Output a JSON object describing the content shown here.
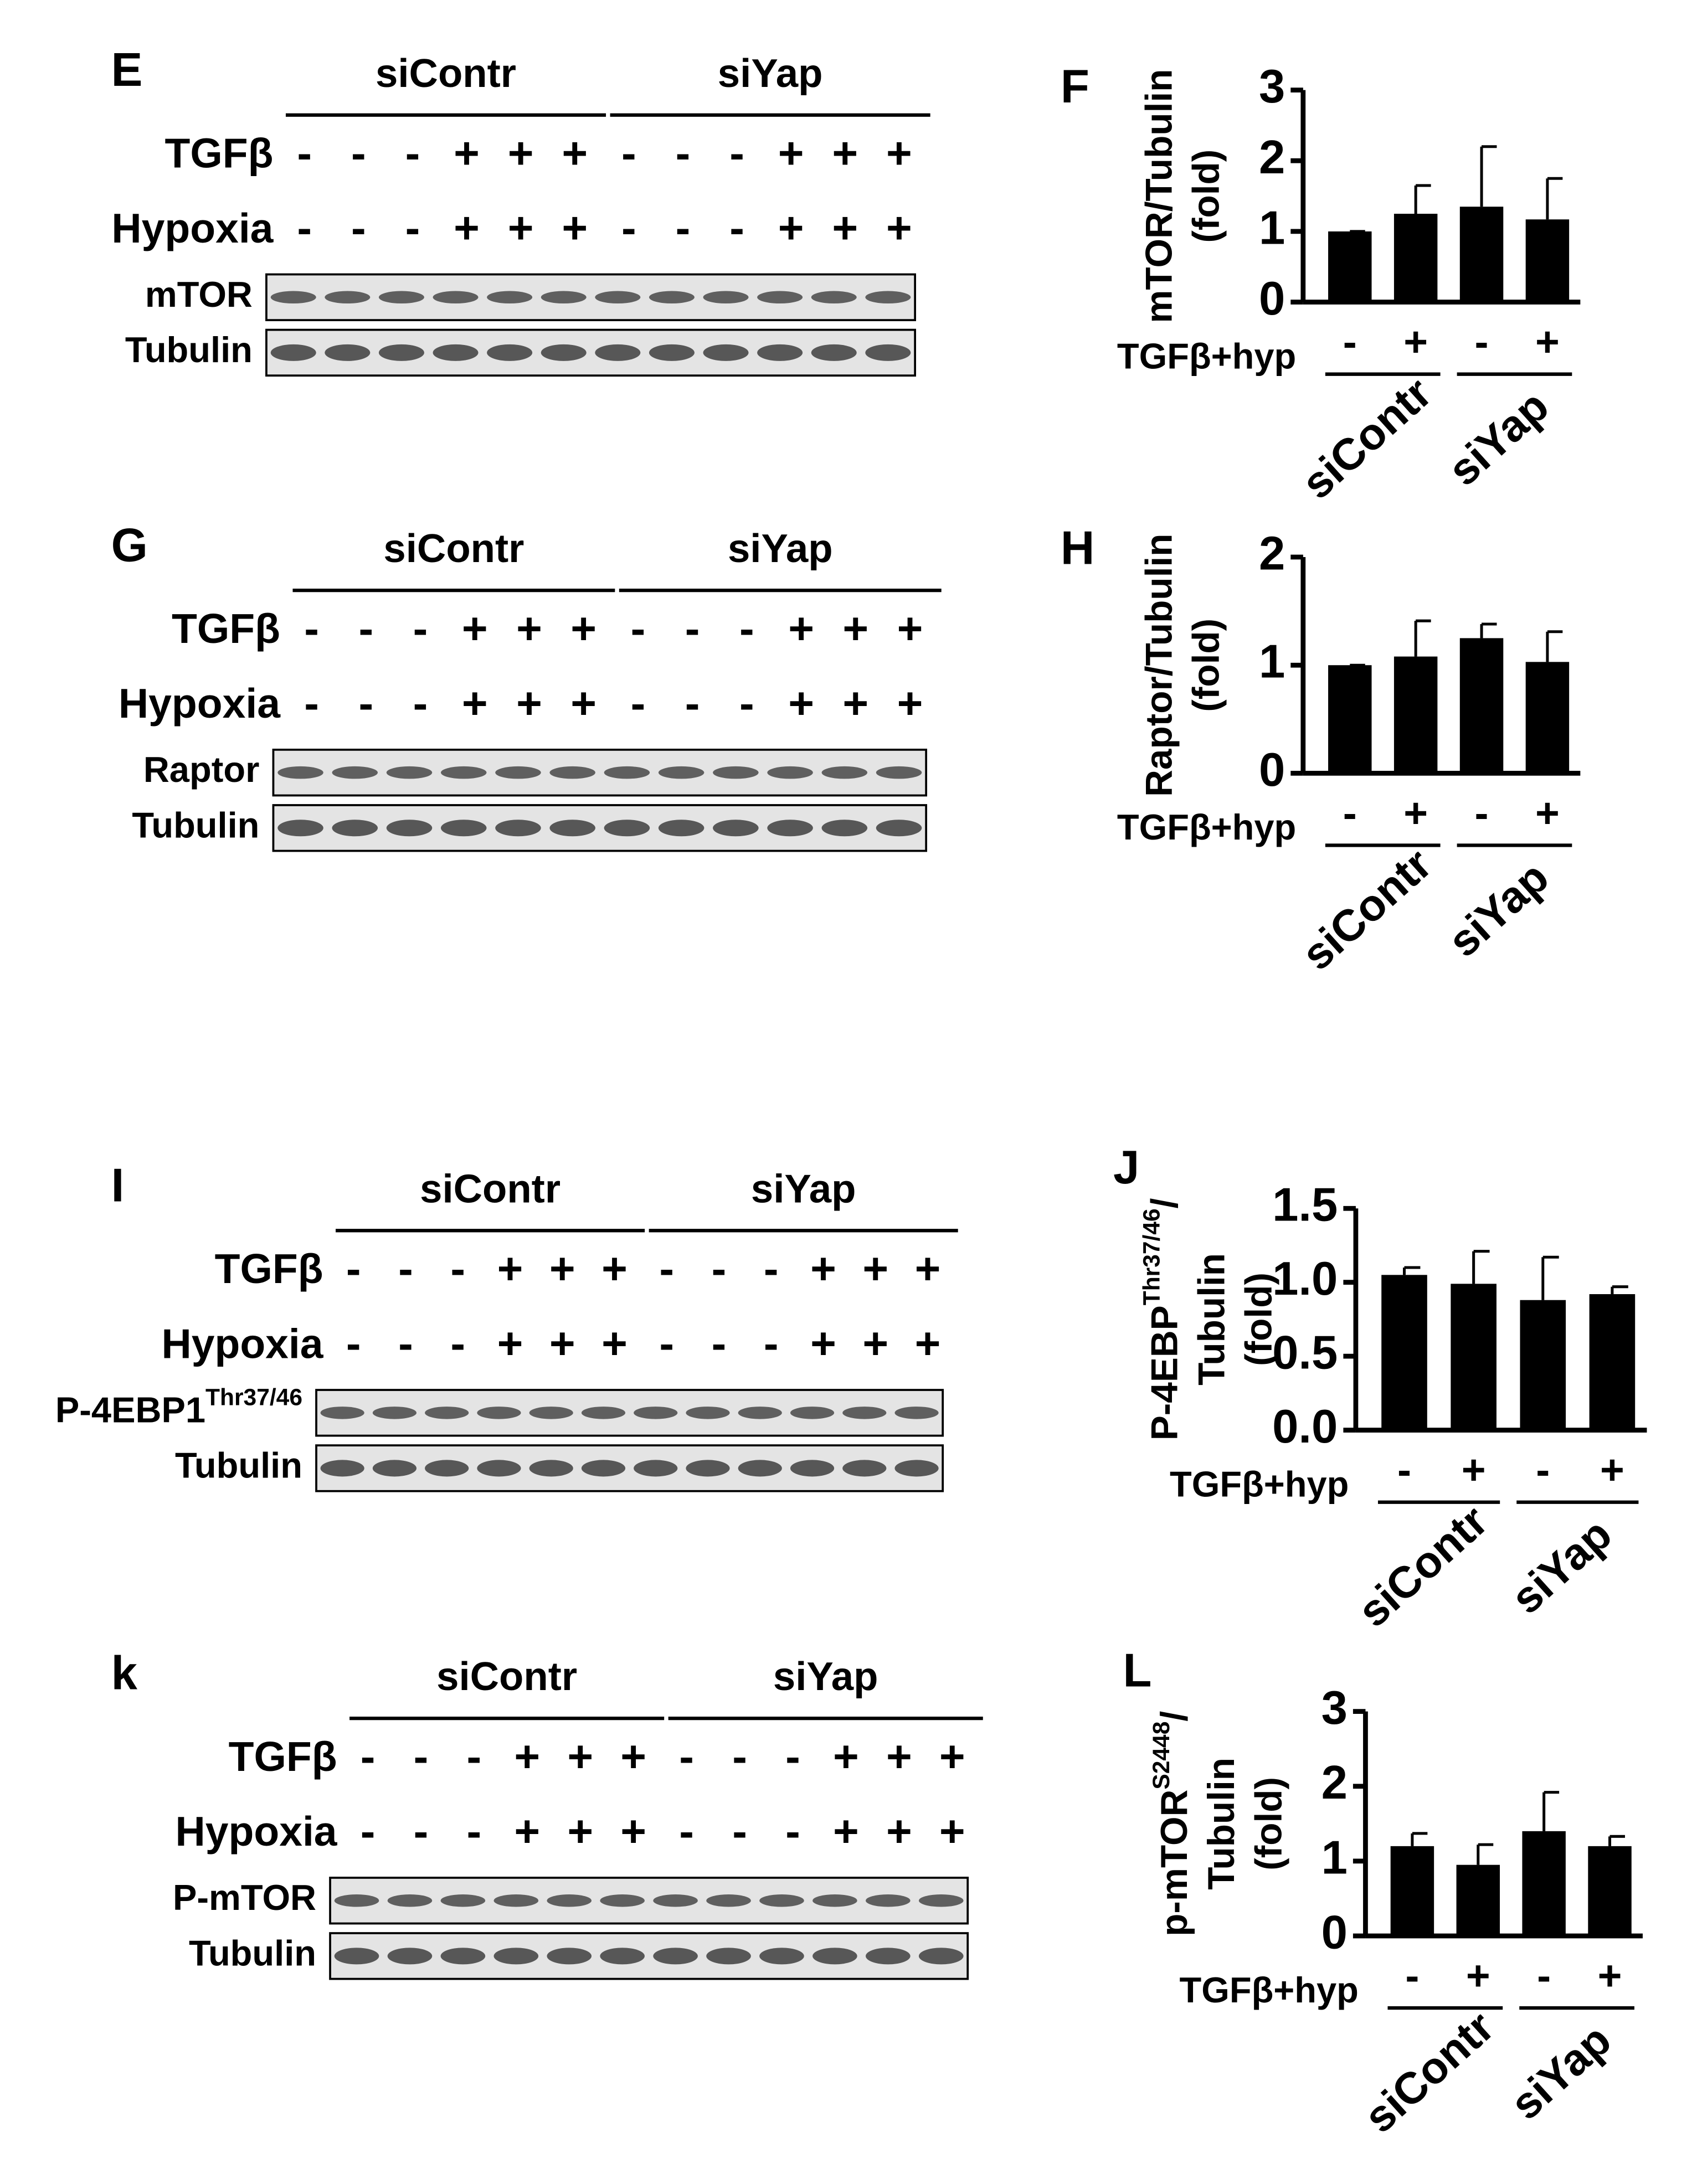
{
  "chart_data": [
    {
      "type": "bar",
      "panel": "F",
      "y_label": [
        {
          "text": "mTOR/Tubulin"
        },
        {
          "text": "(fold)"
        }
      ],
      "x_label": "TGFβ+hyp",
      "categories": [
        "-",
        "+",
        "-",
        "+"
      ],
      "groups": [
        "siContr",
        "siYap"
      ],
      "values": [
        1.0,
        1.25,
        1.35,
        1.17
      ],
      "errors": [
        0,
        0.4,
        0.85,
        0.58
      ],
      "color": "#000000",
      "ylim": [
        0,
        3
      ],
      "yticks": [
        0,
        1,
        2,
        3
      ]
    },
    {
      "type": "bar",
      "panel": "H",
      "y_label": [
        {
          "text": "Raptor/Tubulin"
        },
        {
          "text": "(fold)"
        }
      ],
      "x_label": "TGFβ+hyp",
      "categories": [
        "-",
        "+",
        "-",
        "+"
      ],
      "groups": [
        "siContr",
        "siYap"
      ],
      "values": [
        1.0,
        1.08,
        1.25,
        1.03
      ],
      "errors": [
        0,
        0.33,
        0.13,
        0.28
      ],
      "color": "#000000",
      "ylim": [
        0,
        2
      ],
      "yticks": [
        0,
        1,
        2
      ]
    },
    {
      "type": "bar",
      "panel": "J",
      "y_label": [
        {
          "text": "P-4EBP",
          "sup": "Thr37/46",
          "after": "/"
        },
        {
          "text": "Tubulin"
        },
        {
          "text": "(fold)"
        }
      ],
      "x_label": "TGFβ+hyp",
      "categories": [
        "-",
        "+",
        "-",
        "+"
      ],
      "groups": [
        "siContr",
        "siYap"
      ],
      "values": [
        1.05,
        0.99,
        0.88,
        0.92
      ],
      "errors": [
        0.05,
        0.22,
        0.29,
        0.05
      ],
      "color": "#000000",
      "ylim": [
        0,
        1.5
      ],
      "yticks": [
        {
          "value": 0,
          "label": "0.0"
        },
        {
          "value": 0.5,
          "label": "0.5"
        },
        {
          "value": 1,
          "label": "1.0"
        },
        {
          "value": 1.5,
          "label": "1.5"
        }
      ]
    },
    {
      "type": "bar",
      "panel": "L",
      "y_label": [
        {
          "text": "p-mTOR",
          "sup": "S2448",
          "after": "/"
        },
        {
          "text": "Tubulin"
        },
        {
          "text": "(fold)"
        }
      ],
      "x_label": "TGFβ+hyp",
      "categories": [
        "-",
        "+",
        "-",
        "+"
      ],
      "groups": [
        "siContr",
        "siYap"
      ],
      "values": [
        1.2,
        0.95,
        1.4,
        1.2
      ],
      "errors": [
        0.17,
        0.27,
        0.52,
        0.13
      ],
      "color": "#000000",
      "ylim": [
        0,
        3
      ],
      "yticks": [
        0,
        1,
        2,
        3
      ]
    }
  ],
  "blots": [
    {
      "panel": "E",
      "groups": [
        "siContr",
        "siYap"
      ],
      "conditions": [
        {
          "label": "TGFβ",
          "signs": [
            "-",
            "-",
            "-",
            "+",
            "+",
            "+",
            "-",
            "-",
            "-",
            "+",
            "+",
            "+"
          ]
        },
        {
          "label": "Hypoxia",
          "signs": [
            "-",
            "-",
            "-",
            "+",
            "+",
            "+",
            "-",
            "-",
            "-",
            "+",
            "+",
            "+"
          ]
        }
      ],
      "bands": [
        {
          "label": "mTOR"
        },
        {
          "label": "Tubulin"
        }
      ]
    },
    {
      "panel": "G",
      "groups": [
        "siContr",
        "siYap"
      ],
      "conditions": [
        {
          "label": "TGFβ",
          "signs": [
            "-",
            "-",
            "-",
            "+",
            "+",
            "+",
            "-",
            "-",
            "-",
            "+",
            "+",
            "+"
          ]
        },
        {
          "label": "Hypoxia",
          "signs": [
            "-",
            "-",
            "-",
            "+",
            "+",
            "+",
            "-",
            "-",
            "-",
            "+",
            "+",
            "+"
          ]
        }
      ],
      "bands": [
        {
          "label": "Raptor"
        },
        {
          "label": "Tubulin"
        }
      ]
    },
    {
      "panel": "I",
      "groups": [
        "siContr",
        "siYap"
      ],
      "conditions": [
        {
          "label": "TGFβ",
          "signs": [
            "-",
            "-",
            "-",
            "+",
            "+",
            "+",
            "-",
            "-",
            "-",
            "+",
            "+",
            "+"
          ]
        },
        {
          "label": "Hypoxia",
          "signs": [
            "-",
            "-",
            "-",
            "+",
            "+",
            "+",
            "-",
            "-",
            "-",
            "+",
            "+",
            "+"
          ]
        }
      ],
      "bands": [
        {
          "label": "P-4EBP1",
          "sup": "Thr37/46"
        },
        {
          "label": "Tubulin"
        }
      ]
    },
    {
      "panel": "k",
      "groups": [
        "siContr",
        "siYap"
      ],
      "conditions": [
        {
          "label": "TGFβ",
          "signs": [
            "-",
            "-",
            "-",
            "+",
            "+",
            "+",
            "-",
            "-",
            "-",
            "+",
            "+",
            "+"
          ]
        },
        {
          "label": "Hypoxia",
          "signs": [
            "-",
            "-",
            "-",
            "+",
            "+",
            "+",
            "-",
            "-",
            "-",
            "+",
            "+",
            "+"
          ]
        }
      ],
      "bands": [
        {
          "label": "P-mTOR"
        },
        {
          "label": "Tubulin"
        }
      ]
    }
  ]
}
